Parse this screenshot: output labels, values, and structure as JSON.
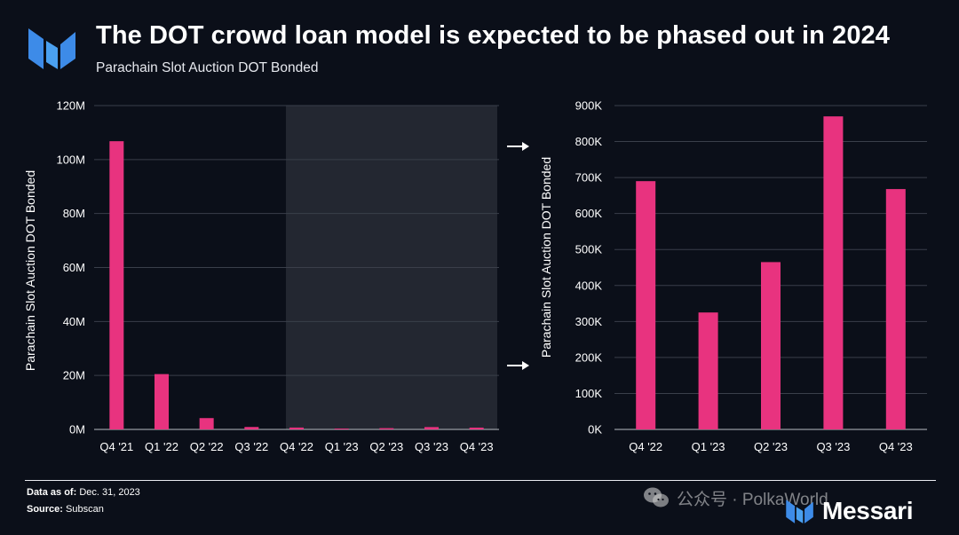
{
  "header": {
    "title": "The DOT crowd loan model is expected to be phased out in 2024",
    "subtitle": "Parachain Slot Auction DOT Bonded"
  },
  "chart_data": [
    {
      "type": "bar",
      "ylabel": "Parachain Slot Auction DOT Bonded",
      "ylim": [
        0,
        120000000
      ],
      "yticks": [
        0,
        20000000,
        40000000,
        60000000,
        80000000,
        100000000,
        120000000
      ],
      "ytick_labels": [
        "0M",
        "20M",
        "40M",
        "60M",
        "80M",
        "100M",
        "120M"
      ],
      "categories": [
        "Q4 '21",
        "Q1 '22",
        "Q2 '22",
        "Q3 '22",
        "Q4 '22",
        "Q1 '23",
        "Q2 '23",
        "Q3 '23",
        "Q4 '23"
      ],
      "values": [
        106800000,
        20500000,
        4200000,
        900000,
        690000,
        325000,
        465000,
        870000,
        668000
      ],
      "highlighted_range": [
        "Q4 '22",
        "Q4 '23"
      ],
      "grid": true,
      "bar_color": "#e8337f"
    },
    {
      "type": "bar",
      "ylabel": "Parachain Slot Auction DOT Bonded",
      "ylim": [
        0,
        900000
      ],
      "yticks": [
        0,
        100000,
        200000,
        300000,
        400000,
        500000,
        600000,
        700000,
        800000,
        900000
      ],
      "ytick_labels": [
        "0K",
        "100K",
        "200K",
        "300K",
        "400K",
        "500K",
        "600K",
        "700K",
        "800K",
        "900K"
      ],
      "categories": [
        "Q4 '22",
        "Q1 '23",
        "Q2 '23",
        "Q3 '23",
        "Q4 '23"
      ],
      "values": [
        690000,
        325000,
        465000,
        870000,
        668000
      ],
      "grid": true,
      "bar_color": "#e8337f"
    }
  ],
  "footer": {
    "data_label": "Data as of:",
    "data_value": "Dec. 31, 2023",
    "source_label": "Source:",
    "source_value": "Subscan"
  },
  "watermark": {
    "text": "公众号 · PolkaWorld",
    "icon": "wechat-icon"
  },
  "brand": {
    "name": "Messari",
    "icon": "messari-logo-icon"
  },
  "colors": {
    "background": "#0b0f19",
    "bar": "#e8337f",
    "highlight_panel": "#232731",
    "logo_blue": "#3d8be8",
    "grid": "#3a3f4a"
  }
}
